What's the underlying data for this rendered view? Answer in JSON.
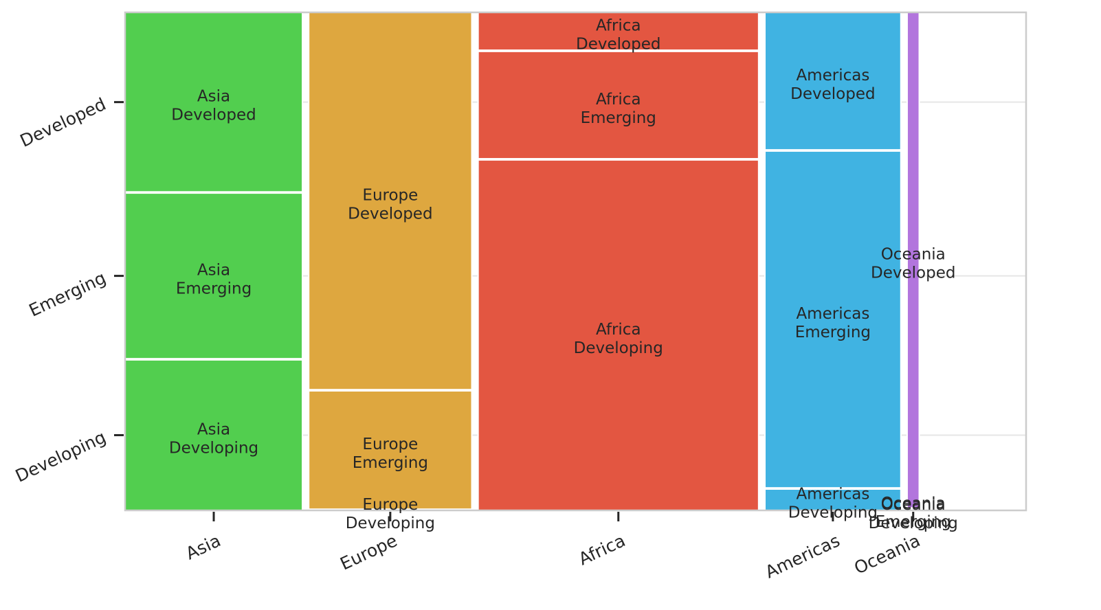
{
  "chart_data": {
    "type": "mosaic",
    "x_categories": [
      "Asia",
      "Europe",
      "Africa",
      "Americas",
      "Oceania"
    ],
    "y_categories": [
      "Developed",
      "Emerging",
      "Developing"
    ],
    "x_fractions": [
      0.2025,
      0.1862,
      0.3203,
      0.1552,
      0.0138
    ],
    "cells": [
      {
        "group": "Asia",
        "label": [
          "Asia",
          "Developed"
        ],
        "fraction": 0.3622
      },
      {
        "group": "Asia",
        "label": [
          "Asia",
          "Emerging"
        ],
        "fraction": 0.3341
      },
      {
        "group": "Asia",
        "label": [
          "Asia",
          "Developing"
        ],
        "fraction": 0.3037
      },
      {
        "group": "Europe",
        "label": [
          "Europe",
          "Developed"
        ],
        "fraction": 0.7613
      },
      {
        "group": "Europe",
        "label": [
          "Europe",
          "Emerging"
        ],
        "fraction": 0.2387
      },
      {
        "group": "Europe",
        "label": [
          "Europe",
          "Developing"
        ],
        "fraction": 0.0
      },
      {
        "group": "Africa",
        "label": [
          "Africa",
          "Developed"
        ],
        "fraction": 0.0763
      },
      {
        "group": "Africa",
        "label": [
          "Africa",
          "Emerging"
        ],
        "fraction": 0.2165
      },
      {
        "group": "Africa",
        "label": [
          "Africa",
          "Developing"
        ],
        "fraction": 0.7072
      },
      {
        "group": "Americas",
        "label": [
          "Americas",
          "Developed"
        ],
        "fraction": 0.2774
      },
      {
        "group": "Americas",
        "label": [
          "Americas",
          "Emerging"
        ],
        "fraction": 0.6796
      },
      {
        "group": "Americas",
        "label": [
          "Americas",
          "Developing"
        ],
        "fraction": 0.043
      },
      {
        "group": "Oceania",
        "label": [
          "Oceania",
          "Developed"
        ],
        "fraction": 1.0
      },
      {
        "group": "Oceania",
        "label": [
          "Oceania",
          "Emerging"
        ],
        "fraction": 0.0
      },
      {
        "group": "Oceania",
        "label": [
          "Oceania",
          "Developing"
        ],
        "fraction": 0.0
      }
    ],
    "colors": {
      "Asia": "#52ce4f",
      "Europe": "#dea73f",
      "Africa": "#e35641",
      "Americas": "#40b3e2",
      "Oceania": "#b275dd"
    },
    "grid": true
  }
}
